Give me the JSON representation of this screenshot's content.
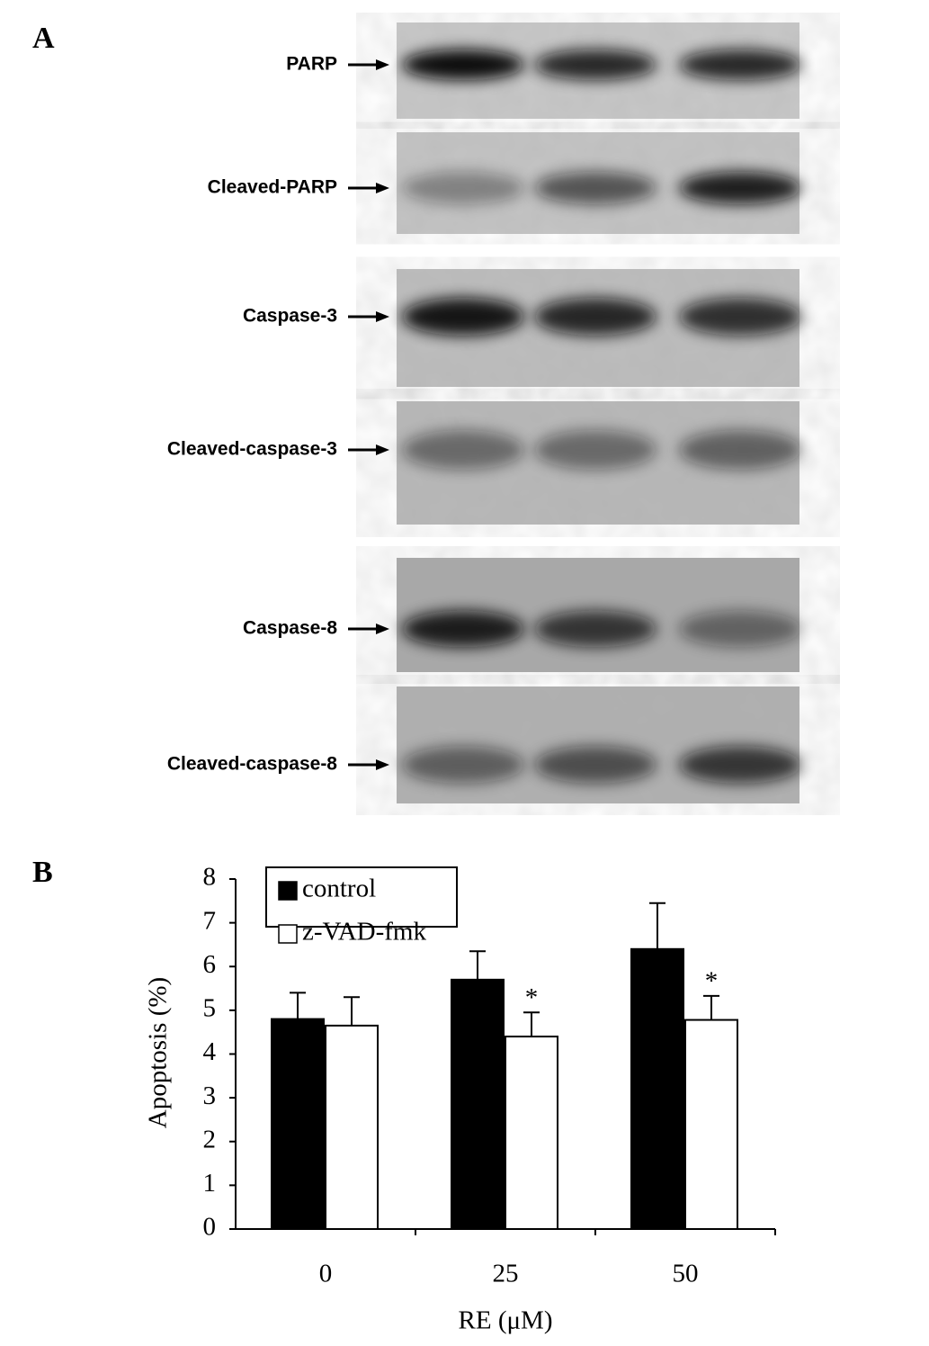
{
  "panels": {
    "a": {
      "label": "A",
      "blots": [
        "PARP",
        "Cleaved-PARP",
        "Caspase-3",
        "Cleaved-caspase-3",
        "Caspase-8",
        "Cleaved-caspase-8"
      ]
    },
    "b": {
      "label": "B"
    }
  },
  "chart_data": {
    "type": "bar",
    "categories": [
      "0",
      "25",
      "50"
    ],
    "x_label": "RE (μM)",
    "y_label": "Apoptosis (%)",
    "series": [
      {
        "name": "control",
        "color": "#000000",
        "values": [
          4.8,
          5.7,
          6.4
        ],
        "errors": [
          0.6,
          0.65,
          1.05
        ]
      },
      {
        "name": "z-VAD-fmk",
        "color": "#ffffff",
        "values": [
          4.65,
          4.4,
          4.78
        ],
        "errors": [
          0.65,
          0.55,
          0.55
        ],
        "value_labels": [
          null,
          "*",
          "*"
        ]
      }
    ],
    "ylim": [
      0,
      8
    ],
    "yticks": [
      0,
      1,
      2,
      3,
      4,
      5,
      6,
      7,
      8
    ],
    "grid": false,
    "legend": "top-left"
  }
}
